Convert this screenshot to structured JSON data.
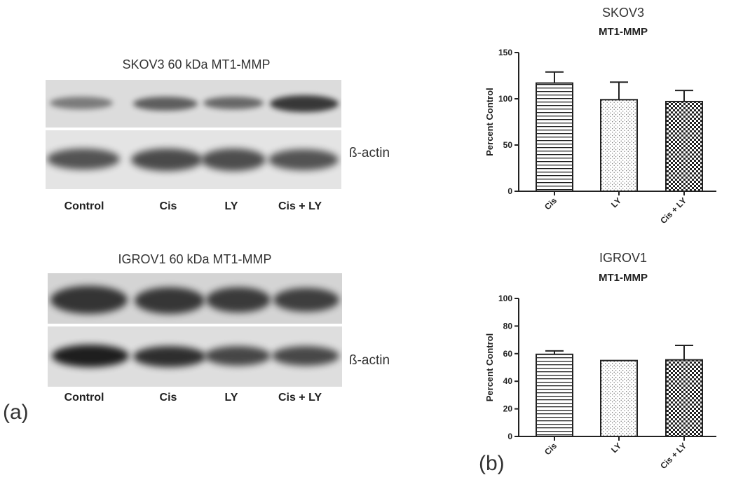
{
  "panel_a": {
    "tag": "(a)",
    "blots": [
      {
        "title": "SKOV3 60 kDa MT1-MMP",
        "actin_label": "ß-actin",
        "lanes": [
          "Control",
          "Cis",
          "LY",
          "Cis + LY"
        ]
      },
      {
        "title": "IGROV1 60 kDa MT1-MMP",
        "actin_label": "ß-actin",
        "lanes": [
          "Control",
          "Cis",
          "LY",
          "Cis + LY"
        ]
      }
    ]
  },
  "panel_b": {
    "tag": "(b)"
  },
  "colors": {
    "axis": "#222222",
    "bar_fill": "#ffffff",
    "pattern": "#222222",
    "blot_bg": "#d9d9d9"
  },
  "chart_data": [
    {
      "type": "bar",
      "title": "SKOV3",
      "subtitle": "MT1-MMP",
      "ylabel": "Percent Control",
      "xlabel": "",
      "categories": [
        "Cis",
        "LY",
        "Cis + LY"
      ],
      "values": [
        117,
        99,
        97
      ],
      "errors": [
        12,
        19,
        12
      ],
      "patterns": [
        "hstripe",
        "dots",
        "checker"
      ],
      "ylim": [
        0,
        150
      ],
      "yticks": [
        0,
        50,
        100,
        150
      ]
    },
    {
      "type": "bar",
      "title": "IGROV1",
      "subtitle": "MT1-MMP",
      "ylabel": "Percent Control",
      "xlabel": "",
      "categories": [
        "Cis",
        "LY",
        "Cis + LY"
      ],
      "values": [
        59.5,
        55,
        55.5
      ],
      "errors": [
        2.5,
        0,
        10.5
      ],
      "patterns": [
        "hstripe",
        "dots",
        "checker"
      ],
      "ylim": [
        0,
        100
      ],
      "yticks": [
        0,
        20,
        40,
        60,
        80,
        100
      ]
    }
  ]
}
